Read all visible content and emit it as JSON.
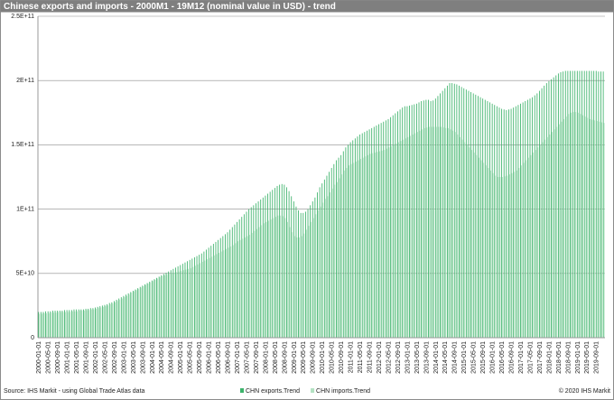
{
  "chart_data": {
    "type": "bar",
    "title": "Chinese exports and imports - 2000M1 - 19M12  (nominal value in USD) - trend",
    "source": "Source: IHS Markit - using Global Trade Atlas data",
    "copyright": "© 2020 IHS Markit",
    "categories": [
      "2000-01-01",
      null,
      null,
      null,
      "2000-05-01",
      null,
      null,
      null,
      "2000-09-01",
      null,
      null,
      null,
      "2001-01-01",
      null,
      null,
      null,
      "2001-05-01",
      null,
      null,
      null,
      "2001-09-01",
      null,
      null,
      null,
      "2002-01-01",
      null,
      null,
      null,
      "2002-05-01",
      null,
      null,
      null,
      "2002-09-01",
      null,
      null,
      null,
      "2003-01-01",
      null,
      null,
      null,
      "2003-05-01",
      null,
      null,
      null,
      "2003-09-01",
      null,
      null,
      null,
      "2004-01-01",
      null,
      null,
      null,
      "2004-05-01",
      null,
      null,
      null,
      "2004-09-01",
      null,
      null,
      null,
      "2005-01-01",
      null,
      null,
      null,
      "2005-05-01",
      null,
      null,
      null,
      "2005-09-01",
      null,
      null,
      null,
      "2006-01-01",
      null,
      null,
      null,
      "2006-05-01",
      null,
      null,
      null,
      "2006-09-01",
      null,
      null,
      null,
      "2007-01-01",
      null,
      null,
      null,
      "2007-05-01",
      null,
      null,
      null,
      "2007-09-01",
      null,
      null,
      null,
      "2008-01-01",
      null,
      null,
      null,
      "2008-05-01",
      null,
      null,
      null,
      "2008-09-01",
      null,
      null,
      null,
      "2009-01-01",
      null,
      null,
      null,
      "2009-05-01",
      null,
      null,
      null,
      "2009-09-01",
      null,
      null,
      null,
      "2010-01-01",
      null,
      null,
      null,
      "2010-05-01",
      null,
      null,
      null,
      "2010-09-01",
      null,
      null,
      null,
      "2011-01-01",
      null,
      null,
      null,
      "2011-05-01",
      null,
      null,
      null,
      "2011-09-01",
      null,
      null,
      null,
      "2012-01-01",
      null,
      null,
      null,
      "2012-05-01",
      null,
      null,
      null,
      "2012-09-01",
      null,
      null,
      null,
      "2013-01-01",
      null,
      null,
      null,
      "2013-05-01",
      null,
      null,
      null,
      "2013-09-01",
      null,
      null,
      null,
      "2014-01-01",
      null,
      null,
      null,
      "2014-05-01",
      null,
      null,
      null,
      "2014-09-01",
      null,
      null,
      null,
      "2015-01-01",
      null,
      null,
      null,
      "2015-05-01",
      null,
      null,
      null,
      "2015-09-01",
      null,
      null,
      null,
      "2016-01-01",
      null,
      null,
      null,
      "2016-05-01",
      null,
      null,
      null,
      "2016-09-01",
      null,
      null,
      null,
      "2017-01-01",
      null,
      null,
      null,
      "2017-05-01",
      null,
      null,
      null,
      "2017-09-01",
      null,
      null,
      null,
      "2018-01-01",
      null,
      null,
      null,
      "2018-05-01",
      null,
      null,
      null,
      "2018-09-01",
      null,
      null,
      null,
      "2019-01-01",
      null,
      null,
      null,
      "2019-05-01",
      null,
      null,
      null,
      "2019-09-01",
      null,
      null,
      null
    ],
    "series": [
      {
        "name": "CHN exports.Trend",
        "color": "#3db36b",
        "values": [
          20000000000.0,
          20000000000.0,
          20000000000.0,
          20500000000.0,
          20500000000.0,
          20500000000.0,
          21000000000.0,
          21000000000.0,
          21000000000.0,
          21000000000.0,
          21000000000.0,
          21500000000.0,
          21500000000.0,
          21500000000.0,
          21500000000.0,
          22000000000.0,
          22000000000.0,
          22000000000.0,
          22000000000.0,
          22000000000.0,
          22500000000.0,
          22500000000.0,
          23000000000.0,
          23000000000.0,
          23500000000.0,
          24000000000.0,
          24500000000.0,
          25000000000.0,
          25500000000.0,
          26000000000.0,
          27000000000.0,
          27500000000.0,
          28500000000.0,
          29500000000.0,
          30500000000.0,
          31500000000.0,
          32500000000.0,
          33500000000.0,
          34500000000.0,
          35500000000.0,
          36500000000.0,
          37500000000.0,
          38500000000.0,
          39500000000.0,
          40500000000.0,
          41500000000.0,
          42500000000.0,
          43500000000.0,
          44500000000.0,
          45500000000.0,
          46500000000.0,
          47500000000.0,
          48500000000.0,
          49500000000.0,
          50500000000.0,
          51500000000.0,
          52500000000.0,
          53500000000.0,
          54500000000.0,
          55500000000.0,
          56500000000.0,
          57500000000.0,
          58500000000.0,
          59500000000.0,
          60500000000.0,
          61500000000.0,
          62500000000.0,
          63500000000.0,
          64500000000.0,
          65500000000.0,
          67000000000.0,
          68500000000.0,
          70000000000.0,
          71500000000.0,
          73000000000.0,
          74500000000.0,
          76000000000.0,
          77500000000.0,
          79000000000.0,
          80500000000.0,
          82000000000.0,
          84000000000.0,
          86000000000.0,
          88000000000.0,
          90000000000.0,
          92000000000.0,
          94000000000.0,
          96000000000.0,
          98000000000.0,
          100000000000.0,
          101500000000.0,
          103000000000.0,
          104500000000.0,
          106000000000.0,
          107500000000.0,
          109000000000.0,
          110500000000.0,
          112000000000.0,
          113500000000.0,
          115000000000.0,
          116500000000.0,
          118000000000.0,
          119000000000.0,
          119500000000.0,
          119000000000.0,
          117000000000.0,
          114000000000.0,
          110000000000.0,
          106000000000.0,
          102000000000.0,
          99000000000.0,
          97000000000.0,
          97000000000.0,
          98000000000.0,
          100000000000.0,
          103000000000.0,
          106000000000.0,
          109000000000.0,
          113000000000.0,
          117000000000.0,
          120000000000.0,
          123000000000.0,
          126000000000.0,
          129000000000.0,
          132000000000.0,
          135000000000.0,
          138000000000.0,
          140000000000.0,
          142000000000.0,
          145000000000.0,
          148000000000.0,
          150000000000.0,
          152000000000.0,
          153500000000.0,
          155000000000.0,
          156500000000.0,
          158000000000.0,
          159000000000.0,
          160000000000.0,
          161000000000.0,
          162000000000.0,
          163000000000.0,
          164000000000.0,
          165000000000.0,
          166000000000.0,
          167000000000.0,
          168000000000.0,
          169000000000.0,
          170000000000.0,
          171500000000.0,
          173000000000.0,
          174500000000.0,
          176000000000.0,
          177500000000.0,
          179000000000.0,
          180000000000.0,
          180000000000.0,
          180500000000.0,
          181000000000.0,
          181500000000.0,
          182000000000.0,
          183000000000.0,
          184000000000.0,
          184500000000.0,
          185000000000.0,
          185000000000.0,
          184000000000.0,
          184500000000.0,
          186000000000.0,
          188000000000.0,
          190000000000.0,
          192000000000.0,
          194000000000.0,
          196000000000.0,
          198000000000.0,
          198000000000.0,
          197500000000.0,
          197000000000.0,
          196000000000.0,
          195000000000.0,
          194000000000.0,
          193000000000.0,
          192000000000.0,
          191000000000.0,
          190000000000.0,
          189000000000.0,
          188000000000.0,
          187000000000.0,
          186000000000.0,
          185000000000.0,
          184000000000.0,
          183000000000.0,
          182000000000.0,
          181000000000.0,
          180000000000.0,
          179000000000.0,
          178000000000.0,
          177500000000.0,
          177000000000.0,
          177500000000.0,
          178000000000.0,
          179000000000.0,
          180000000000.0,
          181000000000.0,
          182000000000.0,
          183000000000.0,
          184000000000.0,
          185000000000.0,
          186000000000.0,
          187000000000.0,
          188500000000.0,
          190000000000.0,
          192000000000.0,
          194000000000.0,
          196000000000.0,
          198000000000.0,
          199500000000.0,
          201000000000.0,
          202500000000.0,
          204000000000.0,
          205500000000.0,
          206500000000.0,
          207000000000.0,
          207500000000.0,
          207500000000.0,
          207500000000.0,
          207500000000.0,
          207500000000.0,
          207500000000.0,
          207500000000.0,
          207500000000.0,
          207500000000.0,
          207500000000.0,
          207500000000.0,
          207500000000.0,
          207500000000.0,
          207500000000.0,
          207000000000.0,
          207000000000.0,
          207000000000.0
        ]
      },
      {
        "name": "CHN imports.Trend",
        "color": "#b3e2c2",
        "values": [
          18500000000.0,
          18500000000.0,
          19000000000.0,
          19000000000.0,
          19000000000.0,
          19500000000.0,
          19500000000.0,
          19500000000.0,
          20000000000.0,
          20000000000.0,
          20000000000.0,
          20000000000.0,
          20000000000.0,
          20000000000.0,
          20500000000.0,
          20500000000.0,
          20500000000.0,
          21000000000.0,
          21000000000.0,
          21000000000.0,
          21500000000.0,
          21500000000.0,
          22000000000.0,
          22000000000.0,
          22500000000.0,
          23000000000.0,
          23500000000.0,
          24000000000.0,
          24500000000.0,
          25000000000.0,
          26000000000.0,
          26500000000.0,
          27500000000.0,
          28500000000.0,
          29500000000.0,
          30500000000.0,
          31500000000.0,
          32500000000.0,
          33500000000.0,
          35000000000.0,
          36000000000.0,
          37000000000.0,
          38000000000.0,
          39000000000.0,
          40000000000.0,
          41000000000.0,
          42000000000.0,
          43000000000.0,
          44000000000.0,
          45000000000.0,
          46000000000.0,
          47000000000.0,
          48000000000.0,
          48500000000.0,
          49000000000.0,
          49500000000.0,
          50000000000.0,
          50500000000.0,
          51000000000.0,
          51500000000.0,
          52000000000.0,
          52500000000.0,
          53000000000.0,
          53500000000.0,
          54000000000.0,
          55000000000.0,
          56000000000.0,
          57000000000.0,
          58000000000.0,
          59000000000.0,
          60000000000.0,
          61000000000.0,
          62000000000.0,
          63000000000.0,
          64000000000.0,
          65000000000.0,
          66000000000.0,
          67000000000.0,
          68000000000.0,
          69000000000.0,
          70000000000.0,
          71000000000.0,
          72000000000.0,
          73500000000.0,
          75000000000.0,
          76000000000.0,
          77000000000.0,
          78000000000.0,
          79000000000.0,
          80000000000.0,
          81500000000.0,
          83000000000.0,
          84500000000.0,
          86000000000.0,
          87500000000.0,
          89000000000.0,
          90000000000.0,
          91000000000.0,
          92000000000.0,
          93000000000.0,
          94000000000.0,
          95000000000.0,
          95000000000.0,
          94500000000.0,
          93000000000.0,
          90000000000.0,
          86000000000.0,
          82000000000.0,
          79000000000.0,
          78000000000.0,
          78000000000.0,
          79000000000.0,
          81000000000.0,
          84000000000.0,
          87000000000.0,
          90000000000.0,
          93000000000.0,
          96000000000.0,
          99000000000.0,
          102000000000.0,
          105000000000.0,
          108000000000.0,
          110000000000.0,
          113000000000.0,
          116000000000.0,
          119000000000.0,
          121000000000.0,
          124000000000.0,
          127000000000.0,
          130000000000.0,
          132000000000.0,
          134000000000.0,
          135000000000.0,
          136000000000.0,
          137000000000.0,
          138000000000.0,
          139000000000.0,
          140000000000.0,
          141000000000.0,
          142000000000.0,
          143000000000.0,
          143500000000.0,
          144000000000.0,
          144500000000.0,
          145000000000.0,
          145500000000.0,
          146000000000.0,
          147000000000.0,
          148000000000.0,
          149000000000.0,
          150000000000.0,
          151000000000.0,
          152000000000.0,
          153000000000.0,
          154000000000.0,
          155000000000.0,
          156000000000.0,
          157000000000.0,
          158000000000.0,
          159000000000.0,
          160000000000.0,
          161000000000.0,
          162000000000.0,
          163000000000.0,
          163500000000.0,
          164000000000.0,
          164000000000.0,
          164000000000.0,
          164000000000.0,
          164000000000.0,
          164000000000.0,
          163500000000.0,
          163000000000.0,
          163000000000.0,
          162000000000.0,
          161000000000.0,
          160000000000.0,
          158000000000.0,
          156000000000.0,
          154000000000.0,
          152000000000.0,
          150000000000.0,
          148000000000.0,
          146000000000.0,
          144000000000.0,
          142000000000.0,
          140000000000.0,
          138000000000.0,
          136000000000.0,
          134000000000.0,
          132000000000.0,
          130000000000.0,
          128000000000.0,
          126000000000.0,
          125000000000.0,
          125000000000.0,
          125000000000.0,
          125500000000.0,
          126000000000.0,
          127000000000.0,
          128000000000.0,
          129000000000.0,
          130000000000.0,
          132000000000.0,
          134000000000.0,
          136000000000.0,
          138000000000.0,
          140000000000.0,
          142000000000.0,
          144000000000.0,
          146000000000.0,
          148000000000.0,
          150000000000.0,
          152000000000.0,
          154000000000.0,
          156000000000.0,
          158000000000.0,
          160000000000.0,
          162000000000.0,
          164000000000.0,
          166000000000.0,
          168000000000.0,
          170000000000.0,
          172000000000.0,
          174000000000.0,
          175000000000.0,
          175500000000.0,
          175500000000.0,
          175000000000.0,
          174000000000.0,
          173000000000.0,
          172000000000.0,
          171000000000.0,
          170000000000.0,
          169500000000.0,
          169000000000.0,
          168500000000.0,
          168000000000.0,
          167500000000.0,
          167000000000.0
        ]
      }
    ],
    "ylim": [
      0,
      250000000000.0
    ],
    "yticks": [
      0,
      {
        "value": 50000000000.0,
        "label": "5E+10"
      },
      {
        "value": 100000000000.0,
        "label": "1E+11"
      },
      {
        "value": 150000000000.0,
        "label": "1.5E+11"
      },
      {
        "value": 200000000000.0,
        "label": "2E+11"
      },
      {
        "value": 250000000000.0,
        "label": "2.5E+11"
      }
    ],
    "grid": true
  }
}
